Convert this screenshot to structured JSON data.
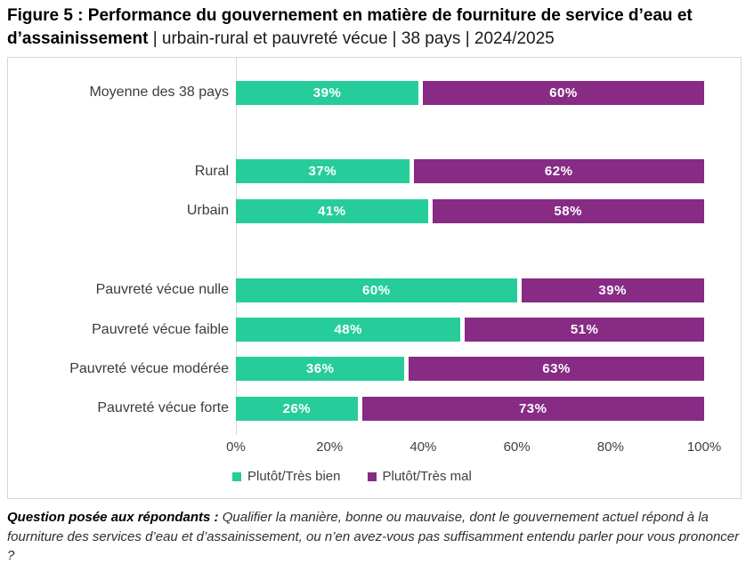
{
  "title": {
    "bold": "Figure 5 : Performance du gouvernement en matière de fourniture de service d’eau et d’assainissement",
    "rest": " | urbain-rural et pauvreté vécue | 38 pays | 2024/2025"
  },
  "chart_data": {
    "type": "bar",
    "orientation": "horizontal",
    "stacked": true,
    "unit": "%",
    "categories": [
      "Moyenne des 38 pays",
      "Rural",
      "Urbain",
      "Pauvreté vécue nulle",
      "Pauvreté vécue faible",
      "Pauvreté vécue modérée",
      "Pauvreté vécue forte"
    ],
    "series": [
      {
        "name": "Plutôt/Très bien",
        "color": "#26CD9B",
        "values": [
          39,
          37,
          41,
          60,
          48,
          36,
          26
        ]
      },
      {
        "name": "Plutôt/Très mal",
        "color": "#872B85",
        "values": [
          60,
          62,
          58,
          39,
          51,
          63,
          73
        ]
      }
    ],
    "x_ticks": [
      "0%",
      "20%",
      "40%",
      "60%",
      "80%",
      "100%"
    ],
    "xlim": [
      0,
      100
    ],
    "grid": false,
    "legend_position": "bottom",
    "group_breaks_after_category_index": [
      0,
      2
    ]
  },
  "footer": {
    "bold": "Question posée aux répondants :",
    "text": " Qualifier la manière, bonne ou mauvaise, dont le gouvernement actuel répond à la fourniture des services d’eau et d’assainissement, ou n’en avez-vous pas suffisamment entendu parler pour vous prononcer ?"
  }
}
